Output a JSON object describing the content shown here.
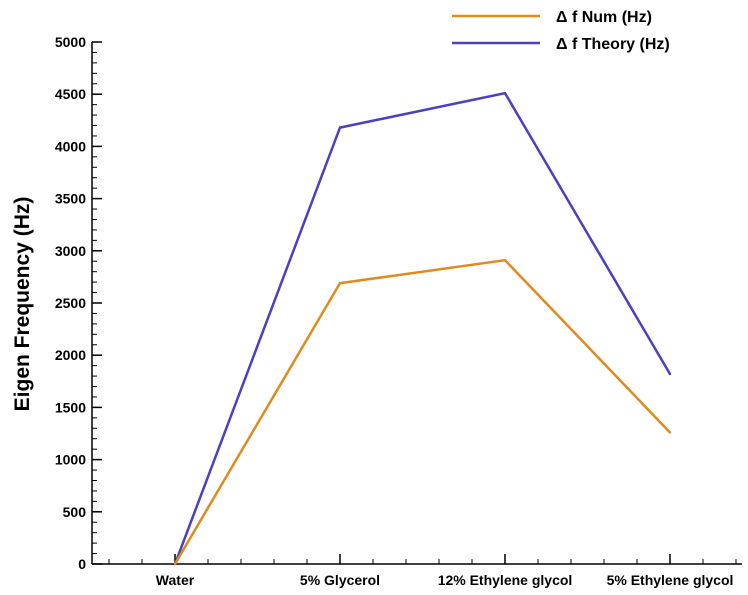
{
  "chart_data": {
    "type": "line",
    "title": "",
    "xlabel": "",
    "ylabel": "Eigen Frequency (Hz)",
    "categories": [
      "Water",
      "5% Glycerol",
      "12% Ethylene glycol",
      "5% Ethylene glycol"
    ],
    "ylim": [
      0,
      5000
    ],
    "yticks": [
      0,
      500,
      1000,
      1500,
      2000,
      2500,
      3000,
      3500,
      4000,
      4500,
      5000
    ],
    "grid": false,
    "legend_position": "top-right",
    "series": [
      {
        "name": "Δ f Num (Hz)",
        "color": "#e08a1e",
        "values": [
          0,
          2690,
          2910,
          1260
        ]
      },
      {
        "name": "Δ f Theory (Hz)",
        "color": "#4b3fc2",
        "values": [
          0,
          4180,
          4510,
          1820
        ]
      }
    ]
  }
}
